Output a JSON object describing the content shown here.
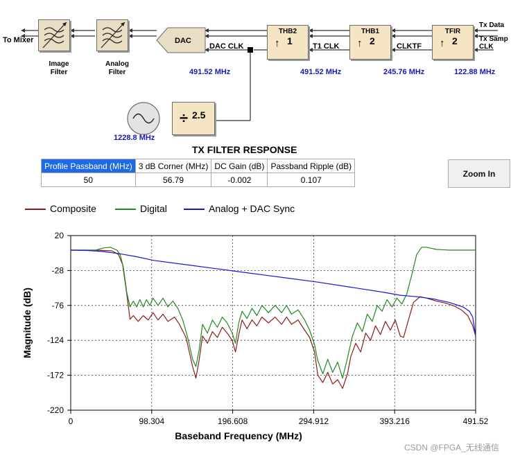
{
  "block_diagram": {
    "to_mixer": "To Mixer",
    "image_filter": [
      "Image",
      "Filter"
    ],
    "analog_filter": [
      "Analog",
      "Filter"
    ],
    "dac": "DAC",
    "dac_clk": "DAC CLK",
    "dac_freq": "491.52 MHz",
    "thb2": {
      "title": "THB2",
      "factor": "1"
    },
    "t1_clk": "T1 CLK",
    "thb2_freq": "491.52 MHz",
    "thb1": {
      "title": "THB1",
      "factor": "2"
    },
    "clktf": "CLKTF",
    "thb1_freq": "245.76 MHz",
    "tfir": {
      "title": "TFIR",
      "factor": "2"
    },
    "tfir_freq": "122.88 MHz",
    "tx_data": "Tx Data",
    "tx_samp_clk": [
      "Tx Samp",
      "CLK"
    ],
    "divider": {
      "symbol": "÷",
      "value": "2.5"
    },
    "osc_freq": "1228.8 MHz",
    "up_arrow": "↑"
  },
  "filter_response": {
    "title": "TX FILTER RESPONSE",
    "headers": [
      "Profile Passband (MHz)",
      "3 dB Corner (MHz)",
      "DC Gain (dB)",
      "Passband Ripple (dB)"
    ],
    "values": [
      "50",
      "56.79",
      "-0.002",
      "0.107"
    ]
  },
  "zoom_button": "Zoom In",
  "watermark": "CSDN @FPGA_无线通信",
  "colors": {
    "composite": "#8b1a1a",
    "digital": "#1f8a1f",
    "analog": "#1515d6",
    "block_fill": "#f5e5c2",
    "freq_text": "#1a1ab0",
    "selected_cell": "#1e6ae6"
  },
  "chart_data": {
    "type": "line",
    "title": "",
    "xlabel": "Baseband Frequency (MHz)",
    "ylabel": "Magnitude (dB)",
    "xlim": [
      0,
      491.52
    ],
    "ylim": [
      -220,
      20
    ],
    "x_ticks": [
      0,
      98.304,
      196.608,
      294.912,
      393.216,
      491.52
    ],
    "x_tick_labels": [
      "0",
      "98.304",
      "196.608",
      "294.912",
      "393.216",
      "491.52"
    ],
    "y_ticks": [
      20,
      -28,
      -76,
      -124,
      -172,
      -220
    ],
    "y_tick_labels": [
      "20",
      "-28",
      "-76",
      "-124",
      "-172",
      "-220"
    ],
    "grid": "dashed",
    "legend_position": "top",
    "series": [
      {
        "name": "Composite",
        "color": "#8b1a1a",
        "points": [
          [
            0,
            0
          ],
          [
            30,
            0
          ],
          [
            50,
            -1
          ],
          [
            58,
            -6
          ],
          [
            63,
            -20
          ],
          [
            68,
            -60
          ],
          [
            72,
            -95
          ],
          [
            76,
            -90
          ],
          [
            82,
            -98
          ],
          [
            88,
            -90
          ],
          [
            94,
            -96
          ],
          [
            100,
            -86
          ],
          [
            106,
            -96
          ],
          [
            112,
            -88
          ],
          [
            118,
            -98
          ],
          [
            126,
            -92
          ],
          [
            132,
            -102
          ],
          [
            140,
            -120
          ],
          [
            148,
            -160
          ],
          [
            152,
            -176
          ],
          [
            156,
            -150
          ],
          [
            160,
            -118
          ],
          [
            166,
            -128
          ],
          [
            172,
            -112
          ],
          [
            178,
            -120
          ],
          [
            184,
            -106
          ],
          [
            190,
            -114
          ],
          [
            196,
            -124
          ],
          [
            200,
            -140
          ],
          [
            204,
            -116
          ],
          [
            208,
            -96
          ],
          [
            214,
            -108
          ],
          [
            220,
            -96
          ],
          [
            226,
            -104
          ],
          [
            232,
            -92
          ],
          [
            240,
            -100
          ],
          [
            248,
            -92
          ],
          [
            256,
            -102
          ],
          [
            262,
            -92
          ],
          [
            268,
            -102
          ],
          [
            276,
            -96
          ],
          [
            284,
            -110
          ],
          [
            290,
            -120
          ],
          [
            296,
            -140
          ],
          [
            300,
            -172
          ],
          [
            306,
            -182
          ],
          [
            312,
            -168
          ],
          [
            318,
            -184
          ],
          [
            324,
            -178
          ],
          [
            330,
            -190
          ],
          [
            336,
            -170
          ],
          [
            340,
            -146
          ],
          [
            346,
            -128
          ],
          [
            352,
            -140
          ],
          [
            358,
            -114
          ],
          [
            364,
            -124
          ],
          [
            370,
            -104
          ],
          [
            376,
            -116
          ],
          [
            382,
            -98
          ],
          [
            388,
            -110
          ],
          [
            394,
            -96
          ],
          [
            400,
            -118
          ],
          [
            404,
            -120
          ],
          [
            410,
            -96
          ],
          [
            416,
            -72
          ],
          [
            424,
            -64
          ],
          [
            432,
            -66
          ],
          [
            444,
            -70
          ],
          [
            456,
            -73
          ],
          [
            466,
            -77
          ],
          [
            474,
            -82
          ],
          [
            482,
            -90
          ],
          [
            488,
            -104
          ],
          [
            491.52,
            -118
          ]
        ]
      },
      {
        "name": "Digital",
        "color": "#1f8a1f",
        "points": [
          [
            0,
            0
          ],
          [
            30,
            0
          ],
          [
            40,
            3
          ],
          [
            48,
            4
          ],
          [
            56,
            0
          ],
          [
            60,
            -6
          ],
          [
            64,
            -24
          ],
          [
            68,
            -58
          ],
          [
            72,
            -78
          ],
          [
            76,
            -70
          ],
          [
            80,
            -78
          ],
          [
            84,
            -68
          ],
          [
            88,
            -78
          ],
          [
            92,
            -68
          ],
          [
            96,
            -76
          ],
          [
            100,
            -66
          ],
          [
            106,
            -76
          ],
          [
            112,
            -66
          ],
          [
            118,
            -78
          ],
          [
            124,
            -70
          ],
          [
            130,
            -80
          ],
          [
            136,
            -96
          ],
          [
            142,
            -120
          ],
          [
            148,
            -150
          ],
          [
            152,
            -160
          ],
          [
            156,
            -136
          ],
          [
            160,
            -102
          ],
          [
            166,
            -114
          ],
          [
            172,
            -96
          ],
          [
            178,
            -106
          ],
          [
            184,
            -92
          ],
          [
            190,
            -100
          ],
          [
            196,
            -114
          ],
          [
            200,
            -128
          ],
          [
            204,
            -100
          ],
          [
            208,
            -84
          ],
          [
            214,
            -94
          ],
          [
            220,
            -80
          ],
          [
            226,
            -90
          ],
          [
            232,
            -76
          ],
          [
            240,
            -86
          ],
          [
            248,
            -76
          ],
          [
            256,
            -86
          ],
          [
            262,
            -76
          ],
          [
            268,
            -88
          ],
          [
            276,
            -82
          ],
          [
            284,
            -96
          ],
          [
            290,
            -110
          ],
          [
            296,
            -130
          ],
          [
            300,
            -152
          ],
          [
            306,
            -170
          ],
          [
            312,
            -150
          ],
          [
            318,
            -168
          ],
          [
            324,
            -154
          ],
          [
            330,
            -176
          ],
          [
            336,
            -148
          ],
          [
            342,
            -118
          ],
          [
            348,
            -100
          ],
          [
            354,
            -112
          ],
          [
            360,
            -88
          ],
          [
            366,
            -98
          ],
          [
            372,
            -76
          ],
          [
            378,
            -84
          ],
          [
            384,
            -68
          ],
          [
            390,
            -78
          ],
          [
            396,
            -66
          ],
          [
            402,
            -74
          ],
          [
            408,
            -60
          ],
          [
            414,
            -34
          ],
          [
            420,
            -6
          ],
          [
            426,
            4
          ],
          [
            432,
            4
          ],
          [
            444,
            1
          ],
          [
            460,
            0
          ],
          [
            476,
            0
          ],
          [
            491.52,
            0
          ]
        ]
      },
      {
        "name": "Analog + DAC Sync",
        "color": "#1515d6",
        "points": [
          [
            0,
            0
          ],
          [
            20,
            -0.5
          ],
          [
            40,
            -2
          ],
          [
            60,
            -5
          ],
          [
            80,
            -9
          ],
          [
            100,
            -14
          ],
          [
            140,
            -20
          ],
          [
            180,
            -26
          ],
          [
            220,
            -32
          ],
          [
            260,
            -38
          ],
          [
            300,
            -44
          ],
          [
            340,
            -51
          ],
          [
            380,
            -58
          ],
          [
            400,
            -62
          ],
          [
            420,
            -64
          ],
          [
            440,
            -67
          ],
          [
            460,
            -72
          ],
          [
            476,
            -78
          ],
          [
            484,
            -84
          ],
          [
            488,
            -92
          ],
          [
            491.52,
            -118
          ]
        ]
      }
    ]
  }
}
